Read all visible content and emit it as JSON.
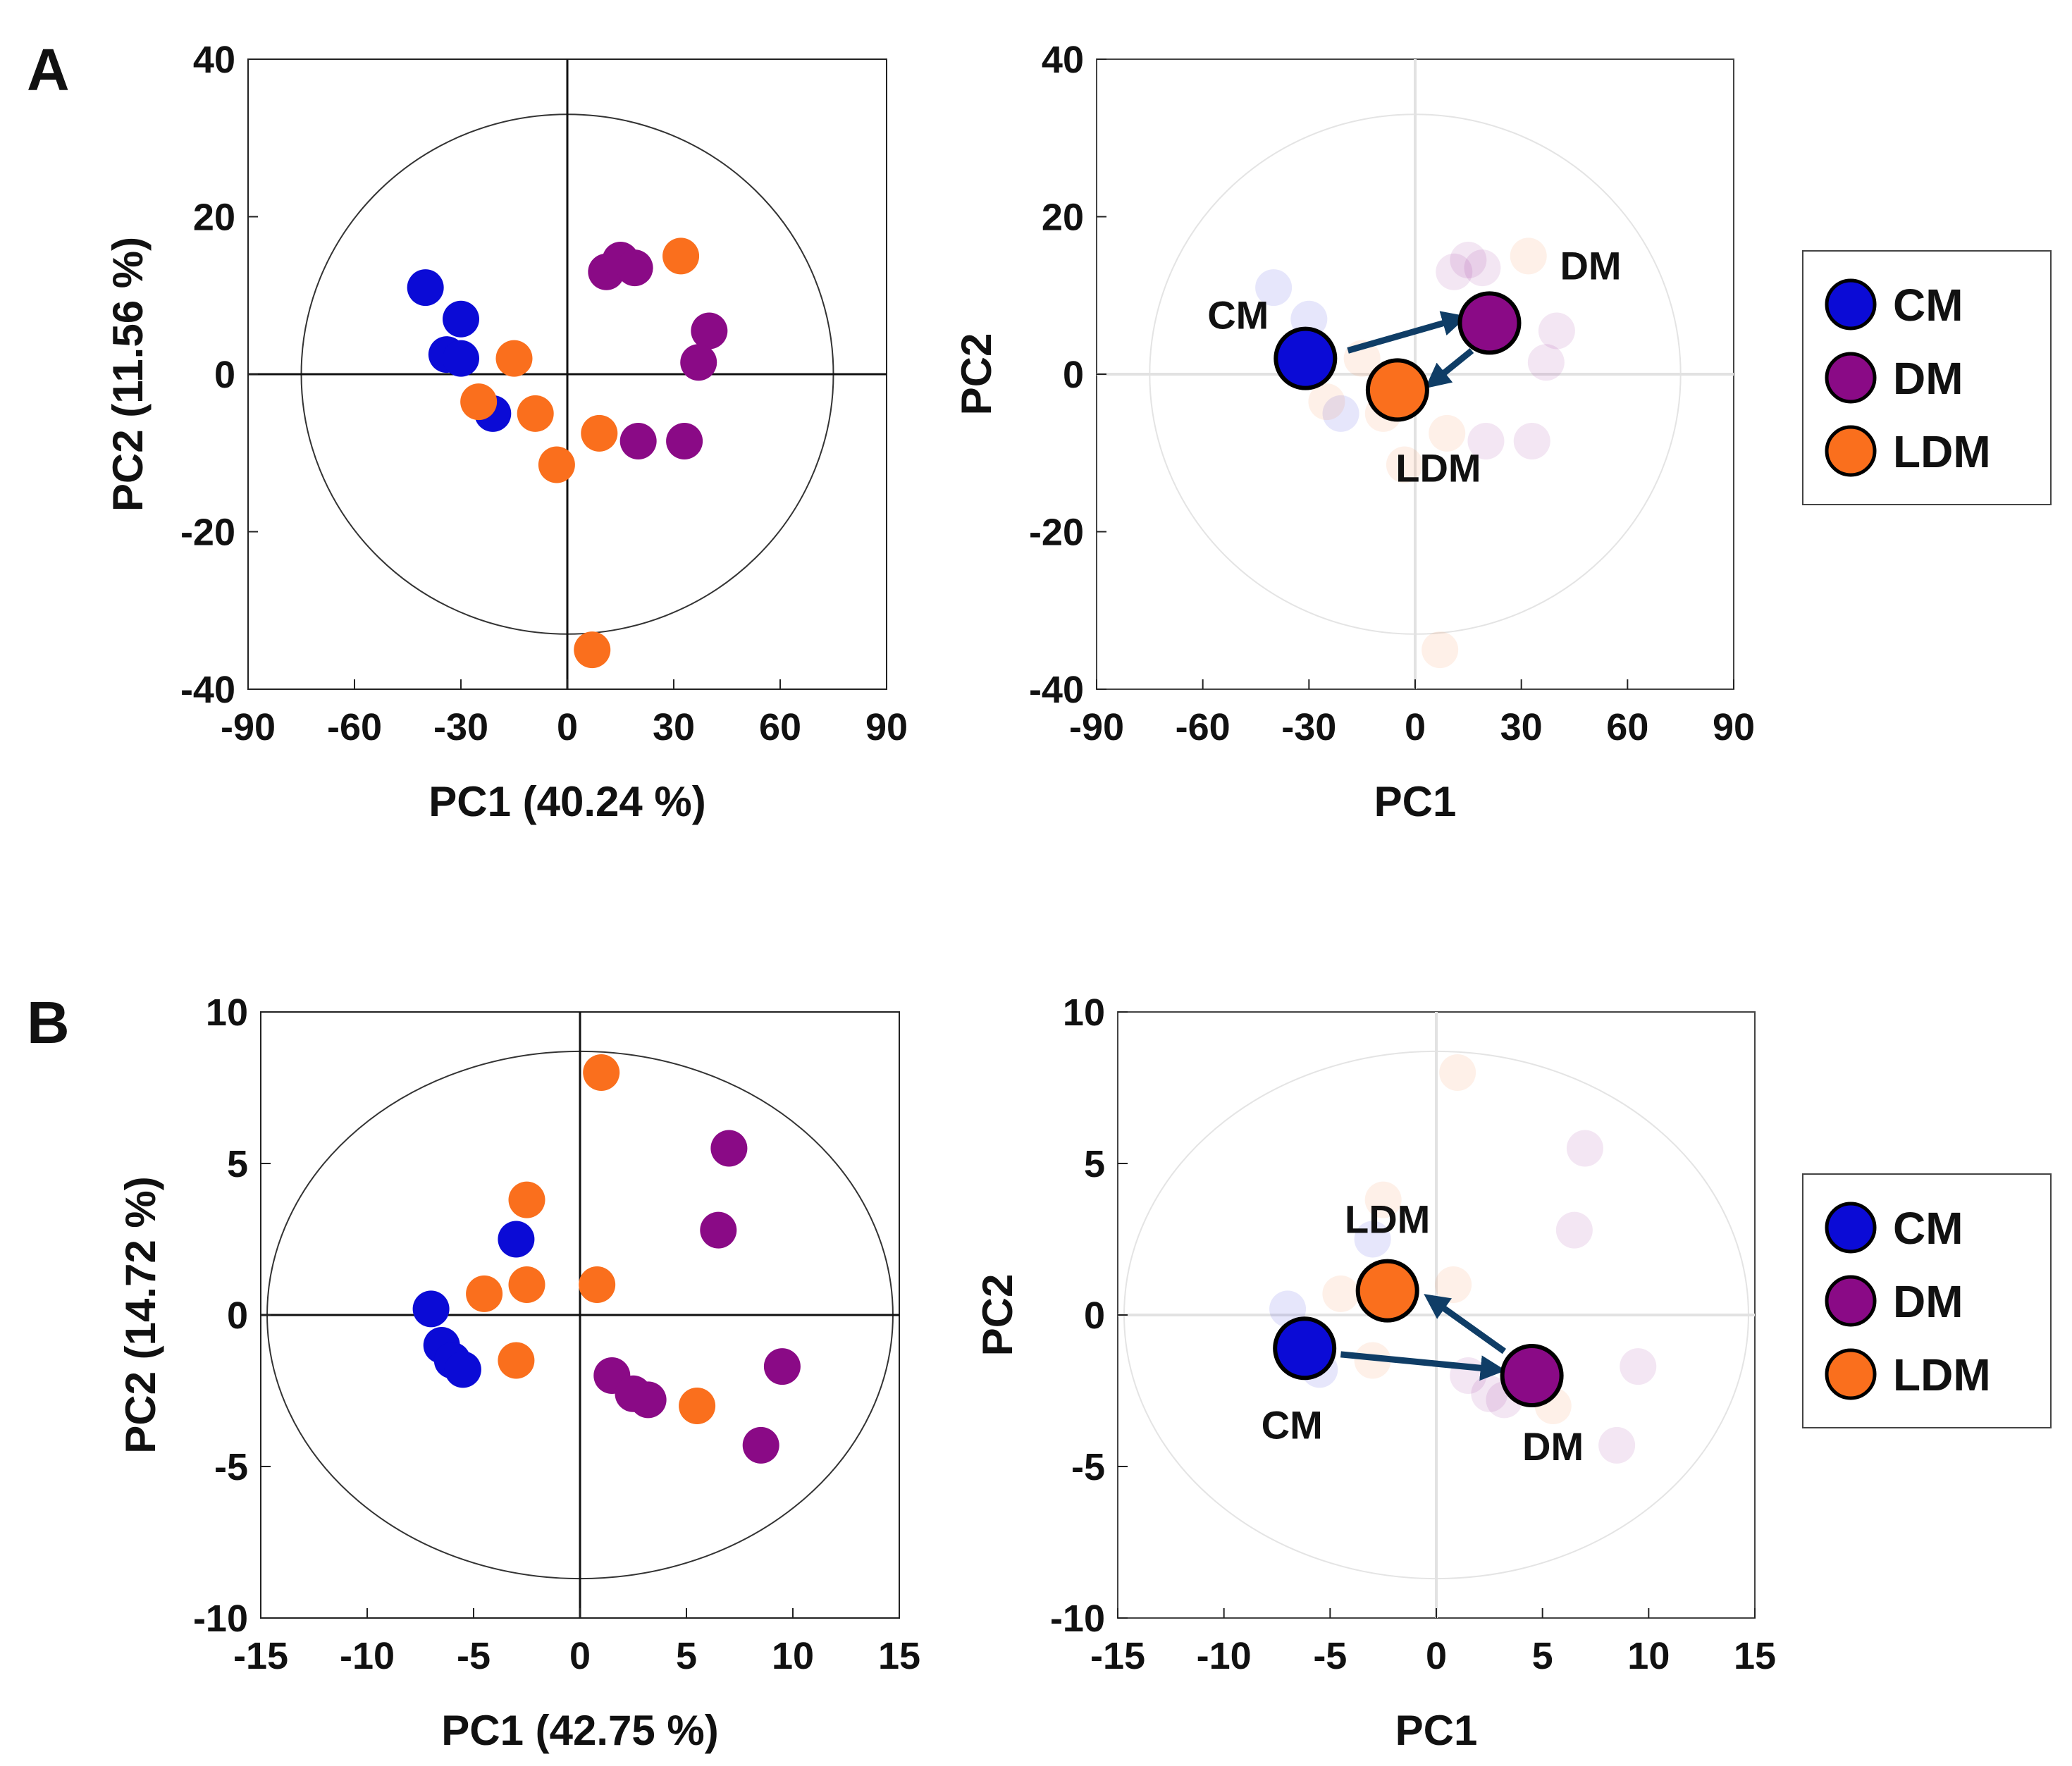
{
  "panels": [
    {
      "id": "A",
      "letter": "A"
    },
    {
      "id": "B",
      "letter": "B"
    }
  ],
  "colors": {
    "CM": "#0b0bd6",
    "DM": "#8a0a86",
    "LDM": "#fa6f1d",
    "arrow": "#0f3d66"
  },
  "legend": [
    {
      "group": "CM",
      "label": "CM"
    },
    {
      "group": "DM",
      "label": "DM"
    },
    {
      "group": "LDM",
      "label": "LDM"
    }
  ],
  "chart_data": [
    {
      "id": "A-scores",
      "panel": "A",
      "type": "scatter",
      "xlabel": "PC1 (40.24 %)",
      "ylabel": "PC2 (11.56 %)",
      "xlim": [
        -90,
        90
      ],
      "ylim": [
        -40,
        40
      ],
      "xticks": [
        -90,
        -60,
        -30,
        0,
        30,
        60,
        90
      ],
      "xtick_labels": [
        "-90",
        "-60",
        "-30",
        "0",
        "30",
        "60",
        "90"
      ],
      "yticks": [
        -40,
        -20,
        0,
        20,
        40
      ],
      "ytick_labels": [
        "-40",
        "-20",
        "0",
        "20",
        "40"
      ],
      "ellipse": {
        "rx": 75,
        "ry": 33
      },
      "faded": false,
      "series": [
        {
          "name": "CM",
          "points": [
            [
              -40,
              11
            ],
            [
              -30,
              7
            ],
            [
              -34,
              2.5
            ],
            [
              -30,
              2
            ],
            [
              -21,
              -5
            ]
          ]
        },
        {
          "name": "DM",
          "points": [
            [
              11,
              13
            ],
            [
              15,
              14.5
            ],
            [
              19,
              13.5
            ],
            [
              40,
              5.5
            ],
            [
              37,
              1.5
            ],
            [
              20,
              -8.5
            ],
            [
              33,
              -8.5
            ]
          ]
        },
        {
          "name": "LDM",
          "points": [
            [
              32,
              15
            ],
            [
              -15,
              2
            ],
            [
              -25,
              -3.5
            ],
            [
              -9,
              -5
            ],
            [
              9,
              -7.5
            ],
            [
              -3,
              -11.5
            ],
            [
              7,
              -35
            ]
          ]
        }
      ]
    },
    {
      "id": "A-means",
      "panel": "A",
      "type": "scatter",
      "xlabel": "PC1",
      "ylabel": "PC2",
      "xlim": [
        -90,
        90
      ],
      "ylim": [
        -40,
        40
      ],
      "xticks": [
        -90,
        -60,
        -30,
        0,
        30,
        60,
        90
      ],
      "xtick_labels": [
        "-90",
        "-60",
        "-30",
        "0",
        "30",
        "60",
        "90"
      ],
      "yticks": [
        -40,
        -20,
        0,
        20,
        40
      ],
      "ytick_labels": [
        "-40",
        "-20",
        "0",
        "20",
        "40"
      ],
      "ellipse": {
        "rx": 75,
        "ry": 33
      },
      "faded": true,
      "series": [
        {
          "name": "CM",
          "points": [
            [
              -40,
              11
            ],
            [
              -30,
              7
            ],
            [
              -34,
              2.5
            ],
            [
              -30,
              2
            ],
            [
              -21,
              -5
            ]
          ]
        },
        {
          "name": "DM",
          "points": [
            [
              11,
              13
            ],
            [
              15,
              14.5
            ],
            [
              19,
              13.5
            ],
            [
              40,
              5.5
            ],
            [
              37,
              1.5
            ],
            [
              20,
              -8.5
            ],
            [
              33,
              -8.5
            ]
          ]
        },
        {
          "name": "LDM",
          "points": [
            [
              32,
              15
            ],
            [
              -15,
              2
            ],
            [
              -25,
              -3.5
            ],
            [
              -9,
              -5
            ],
            [
              9,
              -7.5
            ],
            [
              -3,
              -11.5
            ],
            [
              7,
              -35
            ]
          ]
        }
      ],
      "means": [
        {
          "name": "CM",
          "label": "CM",
          "x": -31,
          "y": 2,
          "label_pos": "upper-left"
        },
        {
          "name": "DM",
          "label": "DM",
          "x": 21,
          "y": 6.5,
          "label_pos": "upper-right"
        },
        {
          "name": "LDM",
          "label": "LDM",
          "x": -5,
          "y": -2,
          "label_pos": "below"
        }
      ],
      "arrows": [
        {
          "from": [
            -19,
            3
          ],
          "to": [
            12,
            7
          ]
        },
        {
          "from": [
            16,
            3
          ],
          "to": [
            5,
            -1
          ]
        }
      ]
    },
    {
      "id": "B-scores",
      "panel": "B",
      "type": "scatter",
      "xlabel": "PC1 (42.75 %)",
      "ylabel": "PC2 (14.72 %)",
      "xlim": [
        -15,
        15
      ],
      "ylim": [
        -10,
        10
      ],
      "xticks": [
        -15,
        -10,
        -5,
        0,
        5,
        10,
        15
      ],
      "xtick_labels": [
        "-15",
        "-10",
        "-5",
        "0",
        "5",
        "10",
        "15"
      ],
      "yticks": [
        -10,
        -5,
        0,
        5,
        10
      ],
      "ytick_labels": [
        "-10",
        "-5",
        "0",
        "5",
        "10"
      ],
      "ellipse": {
        "rx": 14.7,
        "ry": 8.7
      },
      "faded": false,
      "series": [
        {
          "name": "CM",
          "points": [
            [
              -3,
              2.5
            ],
            [
              -7,
              0.2
            ],
            [
              -6.5,
              -1
            ],
            [
              -6,
              -1.5
            ],
            [
              -5.5,
              -1.8
            ]
          ]
        },
        {
          "name": "DM",
          "points": [
            [
              7,
              5.5
            ],
            [
              6.5,
              2.8
            ],
            [
              9.5,
              -1.7
            ],
            [
              1.5,
              -2
            ],
            [
              2.5,
              -2.6
            ],
            [
              3.2,
              -2.8
            ],
            [
              8.5,
              -4.3
            ]
          ]
        },
        {
          "name": "LDM",
          "points": [
            [
              1,
              8
            ],
            [
              -2.5,
              3.8
            ],
            [
              -4.5,
              0.7
            ],
            [
              -2.5,
              1
            ],
            [
              0.8,
              1
            ],
            [
              -3,
              -1.5
            ],
            [
              5.5,
              -3
            ]
          ]
        }
      ]
    },
    {
      "id": "B-means",
      "panel": "B",
      "type": "scatter",
      "xlabel": "PC1",
      "ylabel": "PC2",
      "xlim": [
        -15,
        15
      ],
      "ylim": [
        -10,
        10
      ],
      "xticks": [
        -15,
        -10,
        -5,
        0,
        5,
        10,
        15
      ],
      "xtick_labels": [
        "-15",
        "-10",
        "-5",
        "0",
        "5",
        "10",
        "15"
      ],
      "yticks": [
        -10,
        -5,
        0,
        5,
        10
      ],
      "ytick_labels": [
        "-10",
        "-5",
        "0",
        "5",
        "10"
      ],
      "ellipse": {
        "rx": 14.7,
        "ry": 8.7
      },
      "faded": true,
      "series": [
        {
          "name": "CM",
          "points": [
            [
              -3,
              2.5
            ],
            [
              -7,
              0.2
            ],
            [
              -6.5,
              -1
            ],
            [
              -6,
              -1.5
            ],
            [
              -5.5,
              -1.8
            ]
          ]
        },
        {
          "name": "DM",
          "points": [
            [
              7,
              5.5
            ],
            [
              6.5,
              2.8
            ],
            [
              9.5,
              -1.7
            ],
            [
              1.5,
              -2
            ],
            [
              2.5,
              -2.6
            ],
            [
              3.2,
              -2.8
            ],
            [
              8.5,
              -4.3
            ]
          ]
        },
        {
          "name": "LDM",
          "points": [
            [
              1,
              8
            ],
            [
              -2.5,
              3.8
            ],
            [
              -4.5,
              0.7
            ],
            [
              -2.5,
              1
            ],
            [
              0.8,
              1
            ],
            [
              -3,
              -1.5
            ],
            [
              5.5,
              -3
            ]
          ]
        }
      ],
      "means": [
        {
          "name": "CM",
          "label": "CM",
          "x": -6.2,
          "y": -1.1,
          "label_pos": "below"
        },
        {
          "name": "DM",
          "label": "DM",
          "x": 4.5,
          "y": -2,
          "label_pos": "below-right"
        },
        {
          "name": "LDM",
          "label": "LDM",
          "x": -2.3,
          "y": 0.8,
          "label_pos": "above"
        }
      ],
      "arrows": [
        {
          "from": [
            -4.5,
            -1.3
          ],
          "to": [
            2.8,
            -1.8
          ]
        },
        {
          "from": [
            3.2,
            -1.2
          ],
          "to": [
            -0.2,
            0.5
          ]
        }
      ]
    }
  ]
}
